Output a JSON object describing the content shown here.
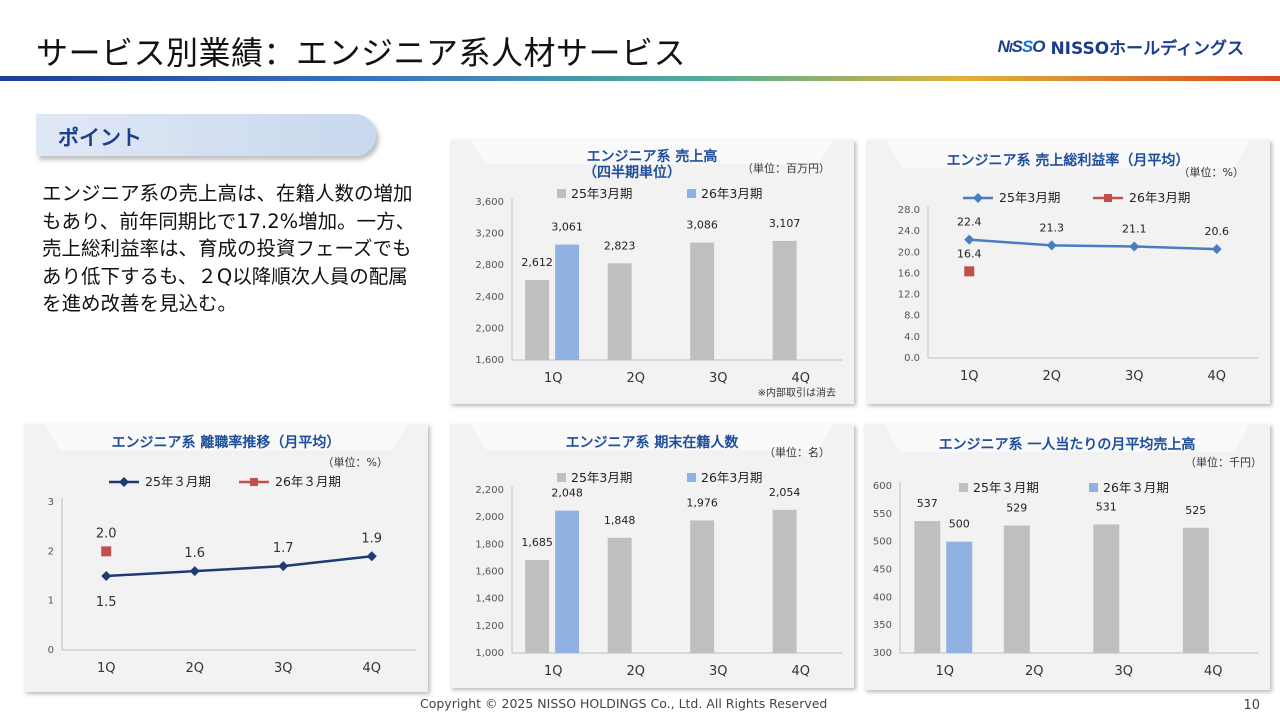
{
  "header": {
    "title": "サービス別業績：エンジニア系人材サービス",
    "logo_mark": "NISSO",
    "logo_text": "NISSOホールディングス"
  },
  "point": {
    "label": "ポイント",
    "text": "エンジニア系の売上高は、在籍人数の増加もあり、前年同期比で17.2%増加。一方、売上総利益率は、育成の投資フェーズでもあり低下するも、２Q以降順次人員の配属を進め改善を見込む。"
  },
  "footer": {
    "copyright": "Copyright © 2025 NISSO HOLDINGS Co., Ltd. All Rights Reserved",
    "page": "10"
  },
  "colors": {
    "prior": "#bfbfbf",
    "current": "#8fb2e3",
    "line_blue": "#4a7cc2",
    "line_navy": "#1f3b73",
    "marker_red": "#c0504d",
    "title_blue": "#1f4e9c"
  },
  "chart_data": [
    {
      "id": "sales",
      "type": "bar",
      "title": "エンジニア系 売上高",
      "subtitle": "（四半期単位）",
      "unit": "（単位：百万円）",
      "note": "※内部取引は消去",
      "categories": [
        "1Q",
        "2Q",
        "3Q",
        "4Q"
      ],
      "series": [
        {
          "name": "25年3月期",
          "values": [
            2612,
            2823,
            3086,
            3107
          ],
          "labels": [
            "2,612",
            "2,823",
            "3,086",
            "3,107"
          ]
        },
        {
          "name": "26年3月期",
          "values": [
            3061,
            null,
            null,
            null
          ],
          "labels": [
            "3,061",
            "",
            "",
            ""
          ]
        }
      ],
      "ylim": [
        1600,
        3600
      ],
      "yticks": [
        1600,
        2000,
        2400,
        2800,
        3200,
        3600
      ],
      "ytick_labels": [
        "1,600",
        "2,000",
        "2,400",
        "2,800",
        "3,200",
        "3,600"
      ],
      "legend": "top"
    },
    {
      "id": "gross_margin",
      "type": "line",
      "title": "エンジニア系 売上総利益率（月平均）",
      "unit": "（単位：%）",
      "categories": [
        "1Q",
        "2Q",
        "3Q",
        "4Q"
      ],
      "series": [
        {
          "name": "25年3月期",
          "values": [
            22.4,
            21.3,
            21.1,
            20.6
          ],
          "labels": [
            "22.4",
            "21.3",
            "21.1",
            "20.6"
          ]
        },
        {
          "name": "26年3月期",
          "values": [
            16.4,
            null,
            null,
            null
          ],
          "labels": [
            "16.4",
            "",
            "",
            ""
          ]
        }
      ],
      "ylim": [
        0,
        28
      ],
      "yticks": [
        0,
        4,
        8,
        12,
        16,
        20,
        24,
        28
      ],
      "ytick_labels": [
        "0.0",
        "4.0",
        "8.0",
        "12.0",
        "16.0",
        "20.0",
        "24.0",
        "28.0"
      ],
      "legend": "top"
    },
    {
      "id": "turnover",
      "type": "line",
      "title": "エンジニア系 離職率推移（月平均）",
      "unit": "（単位：%）",
      "categories": [
        "1Q",
        "2Q",
        "3Q",
        "4Q"
      ],
      "series": [
        {
          "name": "25年３月期",
          "values": [
            1.5,
            1.6,
            1.7,
            1.9
          ],
          "labels": [
            "1.5",
            "1.6",
            "1.7",
            "1.9"
          ]
        },
        {
          "name": "26年３月期",
          "values": [
            2.0,
            null,
            null,
            null
          ],
          "labels": [
            "2.0",
            "",
            "",
            ""
          ]
        }
      ],
      "ylim": [
        0,
        3
      ],
      "yticks": [
        0,
        1,
        2,
        3
      ],
      "ytick_labels": [
        "0",
        "1",
        "2",
        "3"
      ],
      "legend": "top"
    },
    {
      "id": "headcount",
      "type": "bar",
      "title": "エンジニア系 期末在籍人数",
      "unit": "（単位：名）",
      "categories": [
        "1Q",
        "2Q",
        "3Q",
        "4Q"
      ],
      "series": [
        {
          "name": "25年3月期",
          "values": [
            1685,
            1848,
            1976,
            2054
          ],
          "labels": [
            "1,685",
            "1,848",
            "1,976",
            "2,054"
          ]
        },
        {
          "name": "26年3月期",
          "values": [
            2048,
            null,
            null,
            null
          ],
          "labels": [
            "2,048",
            "",
            "",
            ""
          ]
        }
      ],
      "ylim": [
        1000,
        2200
      ],
      "yticks": [
        1000,
        1200,
        1400,
        1600,
        1800,
        2000,
        2200
      ],
      "ytick_labels": [
        "1,000",
        "1,200",
        "1,400",
        "1,600",
        "1,800",
        "2,000",
        "2,200"
      ],
      "legend": "top"
    },
    {
      "id": "per_capita",
      "type": "bar",
      "title": "エンジニア系 一人当たりの月平均売上高",
      "unit": "（単位：千円）",
      "categories": [
        "1Q",
        "2Q",
        "3Q",
        "4Q"
      ],
      "series": [
        {
          "name": "25年３月期",
          "values": [
            537,
            529,
            531,
            525
          ],
          "labels": [
            "537",
            "529",
            "531",
            "525"
          ]
        },
        {
          "name": "26年３月期",
          "values": [
            500,
            null,
            null,
            null
          ],
          "labels": [
            "500",
            "",
            "",
            ""
          ]
        }
      ],
      "ylim": [
        300,
        600
      ],
      "yticks": [
        300,
        350,
        400,
        450,
        500,
        550,
        600
      ],
      "ytick_labels": [
        "300",
        "350",
        "400",
        "450",
        "500",
        "550",
        "600"
      ],
      "legend": "top"
    }
  ]
}
